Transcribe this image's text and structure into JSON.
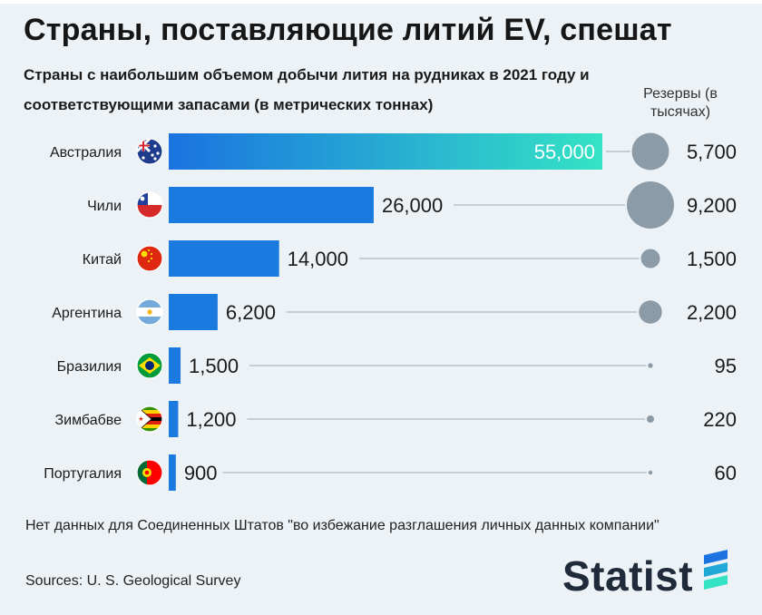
{
  "header": {
    "title": "Страны, поставляющие литий EV, спешат",
    "subtitle": "Страны с наибольшим объемом добычи лития на рудниках в 2021 году и соответствующими запасами (в метрических тоннах)",
    "reserves_label": "Резервы (в тысячах)"
  },
  "colors": {
    "bar_start": "#1a73e0",
    "bar_end_top": "#34e3c4",
    "bar": "#1a7ae0",
    "bubble": "#8c9ba8",
    "leader": "#b9c3cc",
    "background": "#edf2f6"
  },
  "chart_data": {
    "type": "bar",
    "orientation": "horizontal",
    "categories": [
      "Австралия",
      "Чили",
      "Китай",
      "Аргентина",
      "Бразилия",
      "Зимбабве",
      "Португалия"
    ],
    "flags": [
      "australia-flag-icon",
      "chile-flag-icon",
      "china-flag-icon",
      "argentina-flag-icon",
      "brazil-flag-icon",
      "zimbabwe-flag-icon",
      "portugal-flag-icon"
    ],
    "series": [
      {
        "values": [
          55000,
          26000,
          14000,
          6200,
          1500,
          1200,
          900
        ],
        "labels": [
          "55,000",
          "26,000",
          "14,000",
          "6,200",
          "1,500",
          "1,200",
          "900"
        ]
      },
      {
        "name": "Резервы (в тысячах)",
        "marker": "bubble",
        "values": [
          5700,
          9200,
          1500,
          2200,
          95,
          220,
          60
        ],
        "labels": [
          "5,700",
          "9,200",
          "1,500",
          "2,200",
          "95",
          "220",
          "60"
        ]
      }
    ],
    "xlim": [
      0,
      55000
    ]
  },
  "footer": {
    "note": "Нет данных для Соединенных Штатов \"во избежание разглашения личных данных компании\"",
    "sources": "Sources: U. S. Geological Survey",
    "brand": "Statist"
  }
}
